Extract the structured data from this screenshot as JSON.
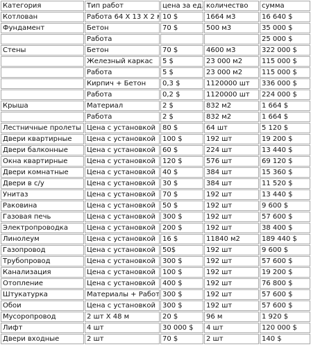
{
  "table": {
    "header": [
      "Категория",
      "Тип работ",
      "цена за ед.",
      "количество",
      "сумма"
    ],
    "rows": [
      [
        "Котлован",
        "Работа 64 Х 13 Х 2 м",
        "10 $",
        "1664 м3",
        "16 640 $"
      ],
      [
        "Фундамент",
        "Бетон",
        "70 $",
        "500 м3",
        "35 000 $"
      ],
      [
        null,
        "Работа",
        null,
        null,
        "25 000 $"
      ],
      [
        "Стены",
        "Бетон",
        "70 $",
        "4600 м3",
        "322 000 $"
      ],
      [
        null,
        "Железный каркас",
        "5 $",
        "23 000 м2",
        "115 000 $"
      ],
      [
        null,
        "Работа",
        "5 $",
        "23 000 м2",
        "115 000 $"
      ],
      [
        null,
        "Кирпич + Бетон",
        "0,3 $",
        "1120000 шт",
        "336 000 $"
      ],
      [
        null,
        "Работа",
        "0,2 $",
        "1120000 шт",
        "224 000 $"
      ],
      [
        "Крыша",
        "Материал",
        "2 $",
        "832 м2",
        "1 664 $"
      ],
      [
        null,
        "Работа",
        "2 $",
        "832 м2",
        "1 664 $"
      ],
      [
        "Лестничные пролеты",
        "Цена с установкой",
        "80 $",
        "64 шт",
        "5 120 $"
      ],
      [
        "Двери квартирные",
        "Цена с установкой",
        "100 $",
        "192 шт",
        "19 200 $"
      ],
      [
        "Двери балконные",
        "Цена с установкой",
        "60 $",
        "224 шт",
        "13 440 $"
      ],
      [
        "Окна квартирные",
        "Цена с установкой",
        "120 $",
        "576 шт",
        "69 120 $"
      ],
      [
        "Двери комнатные",
        "Цена с установкой",
        "40 $",
        "384 шт",
        "15 360 $"
      ],
      [
        "Двери в с/у",
        "Цена с установкой",
        "30 $",
        "384 шт",
        "11 520 $"
      ],
      [
        "Унитаз",
        "Цена с установкой",
        "70 $",
        "192 шт",
        "13 440 $"
      ],
      [
        "Раковина",
        "Цена с установкой",
        "50 $",
        "192 шт",
        "9 600 $"
      ],
      [
        "Газовая печь",
        "Цена с установкой",
        "300 $",
        "192 шт",
        "57 600 $"
      ],
      [
        "Электропроводка",
        "Цена с установкой",
        "200 $",
        "192 шт",
        "38 400 $"
      ],
      [
        "Линолеум",
        "Цена с установкой",
        "16 $",
        "11840 м2",
        "189 440 $"
      ],
      [
        "Газопровод",
        "Цена с установкой",
        "50$",
        "192 шт",
        "9 600 $"
      ],
      [
        "Трубопровод",
        "Цена с установкой",
        "300 $",
        "192 шт",
        "57 600 $"
      ],
      [
        "Канализация",
        "Цена с установкой",
        "100 $",
        "192 шт",
        "19 200 $"
      ],
      [
        "Отопление",
        "Цена с установкой",
        "400 $",
        "192 шт",
        "76 800 $"
      ],
      [
        "Штукатурка",
        "Материалы + Работа",
        "300 $",
        "192 шт",
        "57 600 $"
      ],
      [
        "Обои",
        "Цена с установкой",
        "300 $",
        "192 шт",
        "57 600 $"
      ],
      [
        "Мусоропровод",
        "2 шт Х 48 м",
        "20 $",
        "96 м",
        "1 920 $"
      ],
      [
        "Лифт",
        "4 шт",
        "30 000 $",
        "4 шт",
        "120 000 $"
      ],
      [
        "Двери входные",
        "2 шт",
        "70 $",
        "2 шт",
        "140 $"
      ]
    ]
  }
}
